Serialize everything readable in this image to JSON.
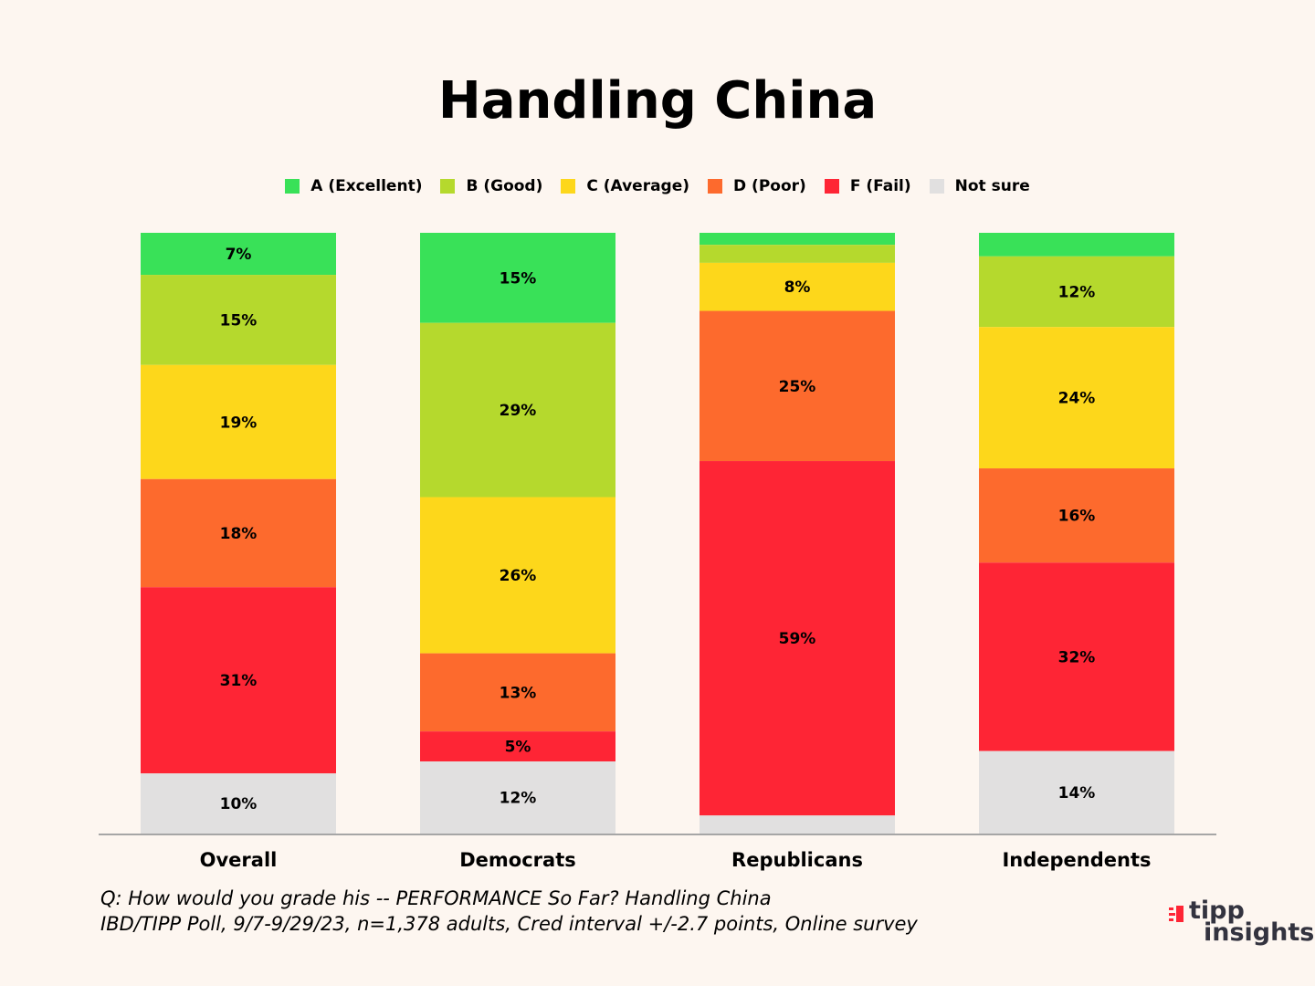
{
  "chart_data": {
    "type": "bar",
    "stacked": true,
    "title": "Handling China",
    "categories": [
      "Overall",
      "Democrats",
      "Republicans",
      "Independents"
    ],
    "ylim": [
      0,
      100
    ],
    "legend_position": "top",
    "grid": false,
    "series": [
      {
        "name": "A (Excellent)",
        "color": "#39e158",
        "values": [
          7,
          15,
          2,
          4
        ],
        "labels": [
          "7%",
          "15%",
          "",
          ""
        ]
      },
      {
        "name": "B (Good)",
        "color": "#b5d92d",
        "values": [
          15,
          29,
          3,
          12
        ],
        "labels": [
          "15%",
          "29%",
          "",
          "12%"
        ]
      },
      {
        "name": "C (Average)",
        "color": "#fdd71b",
        "values": [
          19,
          26,
          8,
          24
        ],
        "labels": [
          "19%",
          "26%",
          "8%",
          "24%"
        ]
      },
      {
        "name": "D (Poor)",
        "color": "#fd6a2d",
        "values": [
          18,
          13,
          25,
          16
        ],
        "labels": [
          "18%",
          "13%",
          "25%",
          "16%"
        ]
      },
      {
        "name": "F (Fail)",
        "color": "#fe2535",
        "values": [
          31,
          5,
          59,
          32
        ],
        "labels": [
          "31%",
          "5%",
          "59%",
          "32%"
        ]
      },
      {
        "name": "Not sure",
        "color": "#e1e0e0",
        "values": [
          10,
          12,
          3,
          14
        ],
        "labels": [
          "10%",
          "12%",
          "",
          "14%"
        ]
      }
    ]
  },
  "footnote": {
    "line1": "Q:  How would you grade his -- PERFORMANCE So Far? Handling China",
    "line2": "IBD/TIPP Poll, 9/7-9/29/23, n=1,378 adults, Cred interval +/-2.7 points, Online survey"
  },
  "logo": {
    "word1": "tipp",
    "word2": "insights",
    "accent_color": "#fe2535",
    "text_color": "#33333f"
  }
}
